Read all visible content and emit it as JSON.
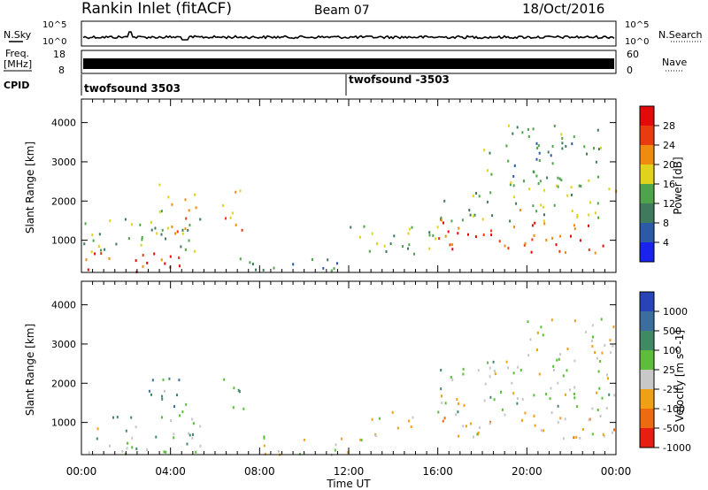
{
  "header": {
    "station": "Rankin Inlet (fitACF)",
    "beam": "Beam 07",
    "date": "18/Oct/2016"
  },
  "strip_panels": {
    "nsky_label": "N.Sky",
    "nsearch_label": "N.Search",
    "noise_ticks": [
      "10^5",
      "10^0"
    ],
    "freq_label_line1": "Freq.",
    "freq_label_line2": "[MHz]",
    "freq_ticks": [
      "18",
      "8"
    ],
    "nave_label": "Nave",
    "nave_ticks": [
      "60",
      "0"
    ],
    "cpid_label": "CPID",
    "cpid_segments": [
      {
        "start_h": 0,
        "end_h": 12,
        "text": "twofsound 3503"
      },
      {
        "start_h": 12,
        "end_h": 24,
        "text": "twofsound -3503"
      }
    ]
  },
  "range_panels": {
    "ylabel": "Slant Range [km]",
    "yticks": [
      "1000",
      "2000",
      "3000",
      "4000"
    ],
    "ymin_km": 180,
    "ymax_km": 4600,
    "xticks": [
      "00:00",
      "04:00",
      "08:00",
      "12:00",
      "16:00",
      "20:00",
      "00:00"
    ],
    "xlabel": "Time UT"
  },
  "power_scale": {
    "label": "Power [dB]",
    "ticks": [
      "4",
      "8",
      "12",
      "16",
      "20",
      "24",
      "28"
    ],
    "colors": [
      "#1a22ee",
      "#2a5aa8",
      "#3f7a5e",
      "#4ea44a",
      "#e2d21c",
      "#ef8c10",
      "#ea3a10",
      "#e40a0a"
    ]
  },
  "velocity_scale": {
    "label": "Velocity [m s^-1]",
    "ticks": [
      "1000",
      "500",
      "100",
      "25",
      "-25",
      "-100",
      "-500",
      "-1000"
    ],
    "colors": [
      "#2844b8",
      "#3a6e9e",
      "#3f8a64",
      "#5cbe3a",
      "#c8c8c8",
      "#f0a016",
      "#ec6a10",
      "#e81e10"
    ]
  },
  "chart_data": {
    "type": "heatmap",
    "title": "Rankin Inlet (fitACF) Beam 07 18/Oct/2016",
    "xlabel": "Time UT",
    "ylabel": "Slant Range [km]",
    "xlim_hours": [
      0,
      24
    ],
    "ylim_km": [
      180,
      4600
    ],
    "power_clusters_dB": [
      {
        "t0": 0.0,
        "t1": 5.5,
        "r0": 200,
        "r1": 700,
        "value": 28
      },
      {
        "t0": 0.0,
        "t1": 5.5,
        "r0": 700,
        "r1": 1600,
        "value": 14
      },
      {
        "t0": 3.0,
        "t1": 5.2,
        "r0": 1200,
        "r1": 2500,
        "value": 20
      },
      {
        "t0": 6.3,
        "t1": 7.3,
        "r0": 1200,
        "r1": 2400,
        "value": 22
      },
      {
        "t0": 7.0,
        "t1": 12.0,
        "r0": 200,
        "r1": 600,
        "value": 10
      },
      {
        "t0": 12.0,
        "t1": 16.0,
        "r0": 500,
        "r1": 1400,
        "value": 14
      },
      {
        "t0": 16.0,
        "t1": 24.0,
        "r0": 700,
        "r1": 1500,
        "value": 26
      },
      {
        "t0": 16.0,
        "t1": 24.0,
        "r0": 1500,
        "r1": 2500,
        "value": 16
      },
      {
        "t0": 18.0,
        "t1": 23.5,
        "r0": 2500,
        "r1": 4000,
        "value": 12
      }
    ],
    "velocity_clusters_ms": [
      {
        "t0": 0.0,
        "t1": 5.5,
        "r0": 200,
        "r1": 1200,
        "value": 80
      },
      {
        "t0": 3.0,
        "t1": 5.2,
        "r0": 1200,
        "r1": 2200,
        "value": 400
      },
      {
        "t0": 6.3,
        "t1": 7.3,
        "r0": 1200,
        "r1": 2200,
        "value": 300
      },
      {
        "t0": 8.0,
        "t1": 13.0,
        "r0": 200,
        "r1": 700,
        "value": -150
      },
      {
        "t0": 13.0,
        "t1": 24.0,
        "r0": 600,
        "r1": 1300,
        "value": -300
      },
      {
        "t0": 16.0,
        "t1": 24.0,
        "r0": 1300,
        "r1": 2600,
        "value": 0
      },
      {
        "t0": 20.0,
        "t1": 24.0,
        "r0": 2600,
        "r1": 3700,
        "value": -200
      }
    ]
  }
}
